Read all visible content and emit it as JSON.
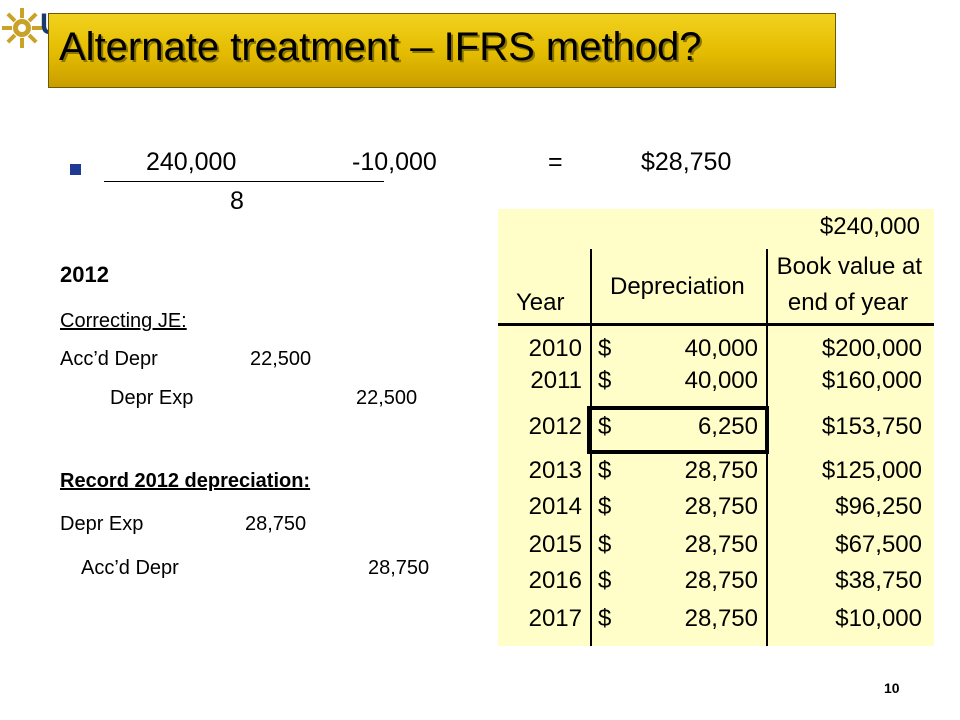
{
  "logo_letter": "U",
  "title": "Alternate treatment – IFRS method?",
  "formula": {
    "numerator_a": "240,000",
    "numerator_b": "-10,000",
    "equals": "=",
    "result": "$28,750",
    "divisor": "8"
  },
  "left": {
    "year_heading": "2012",
    "correcting_label": "Correcting JE:",
    "je1_debit_account": "Acc’d Depr",
    "je1_debit_amount": "22,500",
    "je1_credit_account": "Depr Exp",
    "je1_credit_amount": "22,500",
    "record_label": "Record 2012 depreciation:",
    "je2_debit_account": "Depr Exp",
    "je2_debit_amount": "28,750",
    "je2_credit_account": "Acc’d Depr",
    "je2_credit_amount": "28,750"
  },
  "table": {
    "initial_value": "$240,000",
    "headers": {
      "year": "Year",
      "depreciation": "Depreciation",
      "book_value_line1": "Book value at",
      "book_value_line2": "end of year"
    },
    "rows": [
      {
        "year": "2010",
        "cur": "$",
        "dep": "40,000",
        "bv": "$200,000"
      },
      {
        "year": "2011",
        "cur": "$",
        "dep": "40,000",
        "bv": "$160,000"
      },
      {
        "year": "2012",
        "cur": "$",
        "dep": "6,250",
        "bv": "$153,750"
      },
      {
        "year": "2013",
        "cur": "$",
        "dep": "28,750",
        "bv": "$125,000"
      },
      {
        "year": "2014",
        "cur": "$",
        "dep": "28,750",
        "bv": "$96,250"
      },
      {
        "year": "2015",
        "cur": "$",
        "dep": "28,750",
        "bv": "$67,500"
      },
      {
        "year": "2016",
        "cur": "$",
        "dep": "28,750",
        "bv": "$38,750"
      },
      {
        "year": "2017",
        "cur": "$",
        "dep": "28,750",
        "bv": "$10,000"
      }
    ]
  },
  "page_number": "10",
  "colors": {
    "title_bg": "#e3bb00",
    "table_bg": "#fffec8",
    "bullet": "#1f3a93"
  }
}
